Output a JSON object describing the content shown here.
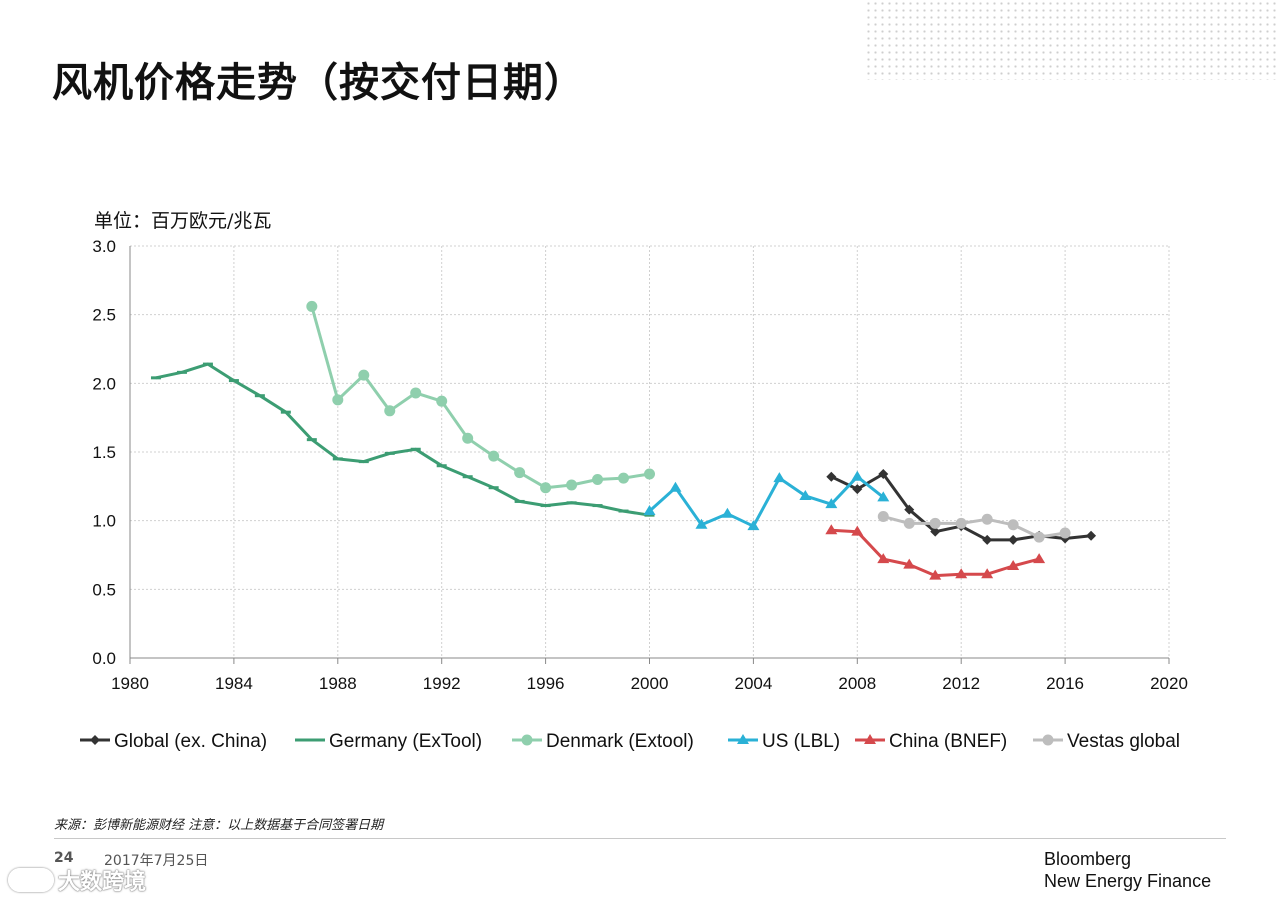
{
  "page": {
    "title": "风机价格走势（按交付日期）",
    "unit_label": "单位：百万欧元/兆瓦",
    "source_note": "来源：彭博新能源财经 注意：以上数据基于合同签署日期",
    "page_number": "24",
    "date": "2017年7月25日",
    "brand_line1": "Bloomberg",
    "brand_line2": "New Energy Finance",
    "watermark": "大数跨境"
  },
  "chart_data": {
    "type": "line",
    "title": "风机价格走势（按交付日期）",
    "ylabel": "单位：百万欧元/兆瓦",
    "xlabel": "",
    "xlim": [
      1980,
      2020
    ],
    "ylim": [
      0,
      3.0
    ],
    "xticks": [
      "1980",
      "1984",
      "1988",
      "1992",
      "1996",
      "2000",
      "2004",
      "2008",
      "2012",
      "2016",
      "2020"
    ],
    "yticks": [
      "0.0",
      "0.5",
      "1.0",
      "1.5",
      "2.0",
      "2.5",
      "3.0"
    ],
    "grid": true,
    "legend_position": "bottom",
    "series": [
      {
        "name": "Global (ex. China)",
        "color": "#333333",
        "marker": "diamond",
        "x": [
          2007,
          2008,
          2009,
          2010,
          2011,
          2012,
          2013,
          2014,
          2015,
          2016,
          2017
        ],
        "y": [
          1.32,
          1.23,
          1.34,
          1.08,
          0.92,
          0.96,
          0.86,
          0.86,
          0.89,
          0.87,
          0.89
        ]
      },
      {
        "name": "Germany (ExTool)",
        "color": "#3c9d73",
        "marker": "dash",
        "x": [
          1981,
          1982,
          1983,
          1984,
          1985,
          1986,
          1987,
          1988,
          1989,
          1990,
          1991,
          1992,
          1993,
          1994,
          1995,
          1996,
          1997,
          1998,
          1999,
          2000
        ],
        "y": [
          2.04,
          2.08,
          2.14,
          2.02,
          1.91,
          1.79,
          1.59,
          1.45,
          1.43,
          1.49,
          1.52,
          1.4,
          1.32,
          1.24,
          1.14,
          1.11,
          1.13,
          1.11,
          1.07,
          1.04
        ]
      },
      {
        "name": "Denmark (Extool)",
        "color": "#8fcfad",
        "marker": "circle",
        "x": [
          1987,
          1988,
          1989,
          1990,
          1991,
          1992,
          1993,
          1994,
          1995,
          1996,
          1997,
          1998,
          1999,
          2000
        ],
        "y": [
          2.56,
          1.88,
          2.06,
          1.8,
          1.93,
          1.87,
          1.6,
          1.47,
          1.35,
          1.24,
          1.26,
          1.3,
          1.31,
          1.34
        ]
      },
      {
        "name": "US (LBL)",
        "color": "#2ab1d6",
        "marker": "triangle",
        "x": [
          2000,
          2001,
          2002,
          2003,
          2004,
          2005,
          2006,
          2007,
          2008,
          2009
        ],
        "y": [
          1.07,
          1.24,
          0.97,
          1.05,
          0.96,
          1.31,
          1.18,
          1.12,
          1.32,
          1.17
        ]
      },
      {
        "name": "China (BNEF)",
        "color": "#d5494c",
        "marker": "triangle",
        "x": [
          2007,
          2008,
          2009,
          2010,
          2011,
          2012,
          2013,
          2014,
          2015
        ],
        "y": [
          0.93,
          0.92,
          0.72,
          0.68,
          0.6,
          0.61,
          0.61,
          0.67,
          0.72
        ]
      },
      {
        "name": "Vestas global",
        "color": "#bdbdbd",
        "marker": "circle",
        "x": [
          2009,
          2010,
          2011,
          2012,
          2013,
          2014,
          2015,
          2016
        ],
        "y": [
          1.03,
          0.98,
          0.98,
          0.98,
          1.01,
          0.97,
          0.88,
          0.91
        ]
      }
    ]
  }
}
